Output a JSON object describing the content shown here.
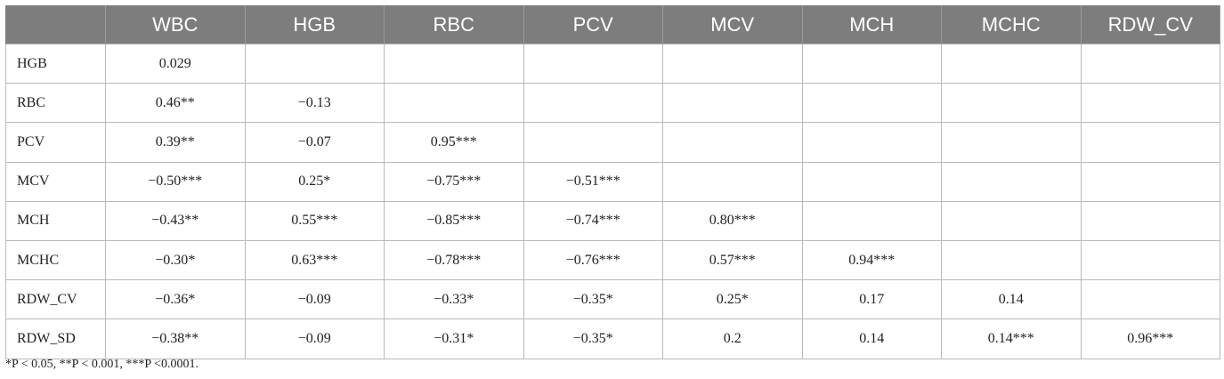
{
  "table": {
    "columns": [
      "",
      "WBC",
      "HGB",
      "RBC",
      "PCV",
      "MCV",
      "MCH",
      "MCHC",
      "RDW_CV"
    ],
    "rows": [
      {
        "label": "HGB",
        "cells": [
          "0.029",
          "",
          "",
          "",
          "",
          "",
          "",
          ""
        ]
      },
      {
        "label": "RBC",
        "cells": [
          "0.46**",
          "−0.13",
          "",
          "",
          "",
          "",
          "",
          ""
        ]
      },
      {
        "label": "PCV",
        "cells": [
          "0.39**",
          "−0.07",
          "0.95***",
          "",
          "",
          "",
          "",
          ""
        ]
      },
      {
        "label": "MCV",
        "cells": [
          "−0.50***",
          "0.25*",
          "−0.75***",
          "−0.51***",
          "",
          "",
          "",
          ""
        ]
      },
      {
        "label": "MCH",
        "cells": [
          "−0.43**",
          "0.55***",
          "−0.85***",
          "−0.74***",
          "0.80***",
          "",
          "",
          ""
        ]
      },
      {
        "label": "MCHC",
        "cells": [
          "−0.30*",
          "0.63***",
          "−0.78***",
          "−0.76***",
          "0.57***",
          "0.94***",
          "",
          ""
        ]
      },
      {
        "label": "RDW_CV",
        "cells": [
          "−0.36*",
          "−0.09",
          "−0.33*",
          "−0.35*",
          "0.25*",
          "0.17",
          "0.14",
          ""
        ]
      },
      {
        "label": "RDW_SD",
        "cells": [
          "−0.38**",
          "−0.09",
          "−0.31*",
          "−0.35*",
          "0.2",
          "0.14",
          "0.14***",
          "0.96***"
        ]
      }
    ]
  },
  "footnote": "*P < 0.05, **P < 0.001, ***P <0.0001."
}
